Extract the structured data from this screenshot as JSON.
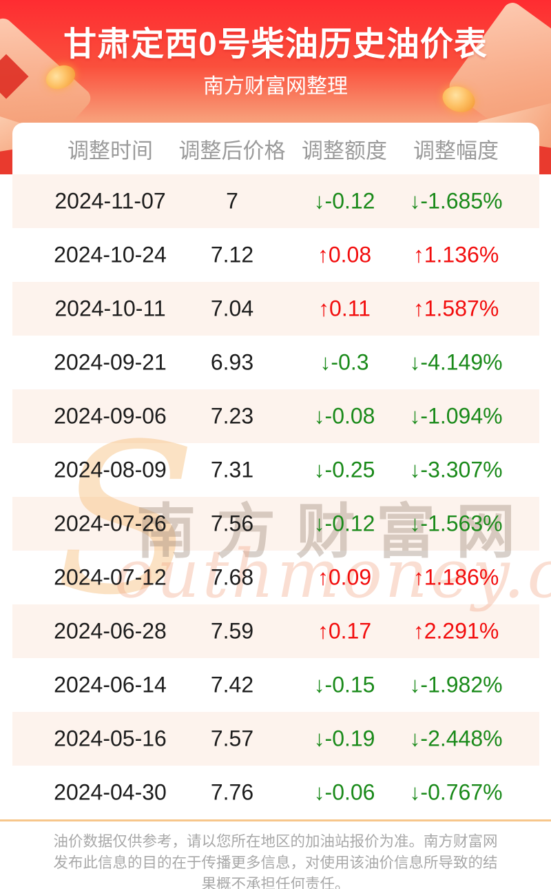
{
  "header": {
    "title": "甘肃定西0号柴油历史油价表",
    "subtitle": "南方财富网整理"
  },
  "watermark": {
    "initial": "S",
    "cn": "南方财富网",
    "en": "outhmoney.com"
  },
  "table": {
    "columns": [
      "调整时间",
      "调整后价格",
      "调整额度",
      "调整幅度"
    ],
    "rows": [
      {
        "date": "2024-11-07",
        "price": "7",
        "change": "↓-0.12",
        "percent": "↓-1.685%",
        "dir": "down"
      },
      {
        "date": "2024-10-24",
        "price": "7.12",
        "change": "↑0.08",
        "percent": "↑1.136%",
        "dir": "up"
      },
      {
        "date": "2024-10-11",
        "price": "7.04",
        "change": "↑0.11",
        "percent": "↑1.587%",
        "dir": "up"
      },
      {
        "date": "2024-09-21",
        "price": "6.93",
        "change": "↓-0.3",
        "percent": "↓-4.149%",
        "dir": "down"
      },
      {
        "date": "2024-09-06",
        "price": "7.23",
        "change": "↓-0.08",
        "percent": "↓-1.094%",
        "dir": "down"
      },
      {
        "date": "2024-08-09",
        "price": "7.31",
        "change": "↓-0.25",
        "percent": "↓-3.307%",
        "dir": "down"
      },
      {
        "date": "2024-07-26",
        "price": "7.56",
        "change": "↓-0.12",
        "percent": "↓-1.563%",
        "dir": "down"
      },
      {
        "date": "2024-07-12",
        "price": "7.68",
        "change": "↑0.09",
        "percent": "↑1.186%",
        "dir": "up"
      },
      {
        "date": "2024-06-28",
        "price": "7.59",
        "change": "↑0.17",
        "percent": "↑2.291%",
        "dir": "up"
      },
      {
        "date": "2024-06-14",
        "price": "7.42",
        "change": "↓-0.15",
        "percent": "↓-1.982%",
        "dir": "down"
      },
      {
        "date": "2024-05-16",
        "price": "7.57",
        "change": "↓-0.19",
        "percent": "↓-2.448%",
        "dir": "down"
      },
      {
        "date": "2024-04-30",
        "price": "7.76",
        "change": "↓-0.06",
        "percent": "↓-0.767%",
        "dir": "down"
      }
    ]
  },
  "footer": {
    "lines": [
      "油价数据仅供参考，请以您所在地区的加油站报价为准。南方财富网",
      "发布此信息的目的在于传播更多信息，对使用该油价信息所导致的结",
      "果概不承担任何责任。"
    ]
  },
  "colors": {
    "accent_red": "#fe2c31",
    "ribbon_red": "#e93a2e",
    "up_red": "#f20d0d",
    "down_green": "#1a8a1a",
    "stripe_pink": "#fdf3ed",
    "separator_orange": "#f7c68b",
    "header_gray": "#9b9b9b"
  }
}
